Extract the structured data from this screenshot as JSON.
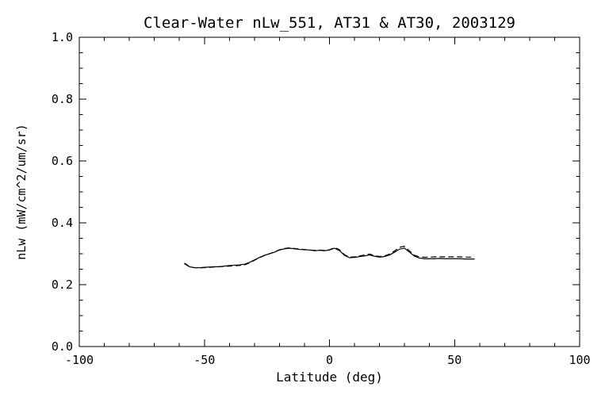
{
  "chart_data": {
    "type": "line",
    "title": "Clear-Water nLw_551, AT31 & AT30, 2003129",
    "xlabel": "Latitude (deg)",
    "ylabel": "nLw (mW/cm^2/um/sr)",
    "xlim": [
      -100,
      100
    ],
    "ylim": [
      0.0,
      1.0
    ],
    "xticks": {
      "values": [
        -100,
        -50,
        0,
        50,
        100
      ],
      "labels": [
        "-100",
        "-50",
        "0",
        "50",
        "100"
      ]
    },
    "yticks": {
      "values": [
        0.0,
        0.2,
        0.4,
        0.6,
        0.8,
        1.0
      ],
      "labels": [
        "0.0",
        "0.2",
        "0.4",
        "0.6",
        "0.8",
        "1.0"
      ]
    },
    "x_minor_step": 10,
    "y_minor_step": 0.05,
    "grid": false,
    "legend": "none",
    "background": "#ffffff",
    "axis_color": "#000000",
    "line_color": "#000000",
    "series": [
      {
        "name": "AT31",
        "style": "solid",
        "x": [
          -58,
          -56,
          -54,
          -52,
          -50,
          -48,
          -46,
          -44,
          -42,
          -40,
          -38,
          -36,
          -34,
          -32,
          -30,
          -28,
          -26,
          -24,
          -22,
          -20,
          -18,
          -16,
          -14,
          -12,
          -10,
          -8,
          -6,
          -4,
          -2,
          0,
          2,
          4,
          6,
          8,
          10,
          12,
          14,
          16,
          18,
          20,
          22,
          24,
          26,
          28,
          30,
          32,
          34,
          36,
          38,
          40,
          42,
          44,
          46,
          48,
          50,
          52,
          54,
          56,
          58
        ],
        "y": [
          0.268,
          0.258,
          0.255,
          0.255,
          0.256,
          0.257,
          0.258,
          0.258,
          0.26,
          0.262,
          0.263,
          0.264,
          0.266,
          0.272,
          0.28,
          0.288,
          0.295,
          0.3,
          0.305,
          0.312,
          0.316,
          0.318,
          0.316,
          0.314,
          0.313,
          0.312,
          0.31,
          0.311,
          0.31,
          0.312,
          0.318,
          0.31,
          0.295,
          0.287,
          0.288,
          0.291,
          0.293,
          0.296,
          0.292,
          0.289,
          0.291,
          0.296,
          0.305,
          0.315,
          0.318,
          0.305,
          0.292,
          0.286,
          0.284,
          0.284,
          0.284,
          0.285,
          0.284,
          0.284,
          0.284,
          0.284,
          0.283,
          0.283,
          0.283
        ]
      },
      {
        "name": "AT30",
        "style": "dashed",
        "x": [
          -58,
          -56,
          -54,
          -52,
          -50,
          -48,
          -46,
          -44,
          -42,
          -40,
          -38,
          -36,
          -34,
          -32,
          -30,
          -28,
          -26,
          -24,
          -22,
          -20,
          -18,
          -16,
          -14,
          -12,
          -10,
          -8,
          -6,
          -4,
          -2,
          0,
          2,
          4,
          6,
          8,
          10,
          12,
          14,
          16,
          18,
          20,
          22,
          24,
          26,
          28,
          30,
          32,
          34,
          36,
          38,
          40,
          42,
          44,
          46,
          48,
          50,
          52,
          54,
          56,
          58
        ],
        "y": [
          0.27,
          0.259,
          0.255,
          0.254,
          0.255,
          0.256,
          0.257,
          0.258,
          0.259,
          0.26,
          0.261,
          0.262,
          0.264,
          0.27,
          0.279,
          0.287,
          0.294,
          0.3,
          0.306,
          0.313,
          0.317,
          0.319,
          0.317,
          0.315,
          0.314,
          0.312,
          0.311,
          0.312,
          0.311,
          0.313,
          0.32,
          0.313,
          0.297,
          0.289,
          0.29,
          0.293,
          0.296,
          0.299,
          0.294,
          0.291,
          0.293,
          0.299,
          0.309,
          0.321,
          0.324,
          0.309,
          0.295,
          0.29,
          0.289,
          0.289,
          0.29,
          0.29,
          0.29,
          0.29,
          0.29,
          0.29,
          0.289,
          0.289,
          0.289
        ]
      }
    ]
  }
}
